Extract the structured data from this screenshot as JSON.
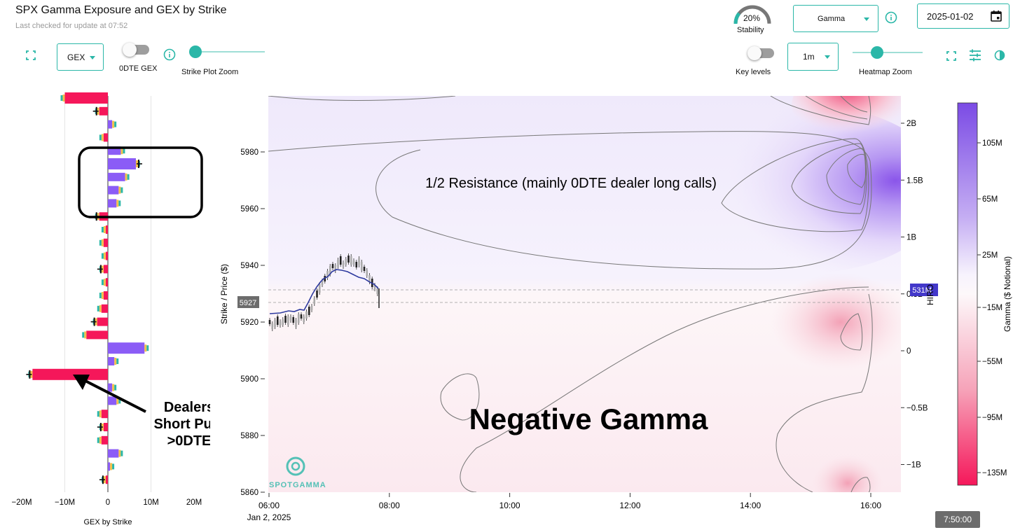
{
  "header": {
    "title": "SPX Gamma Exposure and GEX by Strike",
    "last_checked": "Last checked for update at 07:52"
  },
  "stability": {
    "value": "20%",
    "label": "Stability",
    "fraction": 0.2
  },
  "controls": {
    "gex_select": "GEX",
    "odte_toggle_label": "0DTE GEX",
    "strike_zoom_label": "Strike Plot Zoom",
    "key_levels_label": "Key levels",
    "interval_select": "1m",
    "heatmap_zoom_label": "Heatmap Zoom",
    "gamma_select": "Gamma",
    "date_value": "2025-01-02"
  },
  "left_chart": {
    "xlabel": "GEX by Strike",
    "ticks": [
      "−20M",
      "−10M",
      "0",
      "10M",
      "20M"
    ],
    "annotation": [
      "Dealers",
      "Short Puts",
      ">0DTE"
    ]
  },
  "heatmap": {
    "ylabel": "Strike / Price ($)",
    "y_ticks": [
      "5980",
      "5960",
      "5940",
      "5920",
      "5900",
      "5880",
      "5860"
    ],
    "x_ticks": [
      "06:00",
      "08:00",
      "10:00",
      "12:00",
      "14:00",
      "16:00"
    ],
    "x_date": "Jan 2, 2025",
    "current_price": "5927",
    "hiro_ticks": [
      "2B",
      "1.5B",
      "1B",
      "0.5B",
      "0",
      "−0.5B",
      "−1B"
    ],
    "hiro_label": "HIRO",
    "hiro_value": "531M",
    "annotation_resistance": "1/2 Resistance (mainly 0DTE dealer long calls)",
    "annotation_negative": "Negative Gamma",
    "logo": "SPOTGAMMA"
  },
  "colorbar": {
    "label": "Gamma ($ Notional)",
    "ticks": [
      "105M",
      "65M",
      "25M",
      "−15M",
      "−55M",
      "−95M",
      "−135M"
    ]
  },
  "time_chip": "7:50:00",
  "colors": {
    "accent": "#2bb7a8",
    "positive": "#8b5cf6",
    "negative": "#f5175a"
  },
  "chart_data": {
    "type": "bar",
    "xlabel": "GEX by Strike",
    "x_unit": "$ notional",
    "xlim": [
      -20000000,
      20000000
    ],
    "bars": [
      {
        "value": -10000000
      },
      {
        "value": -2000000
      },
      {
        "value": 1000000
      },
      {
        "value": -1000000
      },
      {
        "value": 3000000
      },
      {
        "value": 6500000
      },
      {
        "value": 4000000
      },
      {
        "value": 2500000
      },
      {
        "value": 2000000
      },
      {
        "value": -2000000
      },
      {
        "value": -500000
      },
      {
        "value": -1000000
      },
      {
        "value": -500000
      },
      {
        "value": -1000000
      },
      {
        "value": -500000
      },
      {
        "value": -1000000
      },
      {
        "value": -1500000
      },
      {
        "value": -2500000
      },
      {
        "value": -5000000
      },
      {
        "value": 8500000
      },
      {
        "value": 1500000
      },
      {
        "value": -17500000
      },
      {
        "value": 1000000
      },
      {
        "value": 2000000
      },
      {
        "value": -1500000
      },
      {
        "value": -1000000
      },
      {
        "value": -1500000
      },
      {
        "value": 2500000
      },
      {
        "value": 500000
      },
      {
        "value": -500000
      }
    ]
  }
}
